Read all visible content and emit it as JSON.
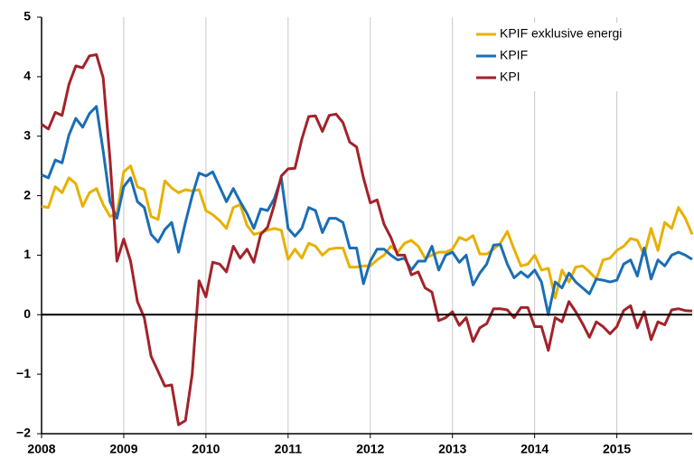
{
  "chart_data": {
    "type": "line",
    "x": [
      2008,
      2008.083,
      2008.167,
      2008.25,
      2008.333,
      2008.417,
      2008.5,
      2008.583,
      2008.667,
      2008.75,
      2008.833,
      2008.917,
      2009,
      2009.083,
      2009.167,
      2009.25,
      2009.333,
      2009.417,
      2009.5,
      2009.583,
      2009.667,
      2009.75,
      2009.833,
      2009.917,
      2010,
      2010.083,
      2010.167,
      2010.25,
      2010.333,
      2010.417,
      2010.5,
      2010.583,
      2010.667,
      2010.75,
      2010.833,
      2010.917,
      2011,
      2011.083,
      2011.167,
      2011.25,
      2011.333,
      2011.417,
      2011.5,
      2011.583,
      2011.667,
      2011.75,
      2011.833,
      2011.917,
      2012,
      2012.083,
      2012.167,
      2012.25,
      2012.333,
      2012.417,
      2012.5,
      2012.583,
      2012.667,
      2012.75,
      2012.833,
      2012.917,
      2013,
      2013.083,
      2013.167,
      2013.25,
      2013.333,
      2013.417,
      2013.5,
      2013.583,
      2013.667,
      2013.75,
      2013.833,
      2013.917,
      2014,
      2014.083,
      2014.167,
      2014.25,
      2014.333,
      2014.417,
      2014.5,
      2014.583,
      2014.667,
      2014.75,
      2014.833,
      2014.917,
      2015,
      2015.083,
      2015.167,
      2015.25,
      2015.333,
      2015.417,
      2015.5,
      2015.583,
      2015.667,
      2015.75,
      2015.833,
      2015.917
    ],
    "series": [
      {
        "name": "KPIF exklusive energi",
        "color": "#e8b000",
        "values": [
          1.82,
          1.8,
          2.15,
          2.05,
          2.3,
          2.2,
          1.82,
          2.05,
          2.12,
          1.85,
          1.65,
          1.7,
          2.4,
          2.5,
          2.15,
          2.1,
          1.65,
          1.6,
          2.25,
          2.13,
          2.05,
          2.1,
          2.08,
          2.1,
          1.75,
          1.68,
          1.58,
          1.45,
          1.8,
          1.85,
          1.5,
          1.35,
          1.38,
          1.42,
          1.45,
          1.42,
          0.93,
          1.1,
          0.95,
          1.2,
          1.15,
          1.0,
          1.1,
          1.12,
          1.12,
          0.8,
          0.8,
          0.82,
          0.82,
          0.92,
          1.0,
          1.15,
          1.05,
          1.2,
          1.25,
          1.15,
          0.95,
          1.0,
          1.05,
          1.05,
          1.1,
          1.3,
          1.25,
          1.33,
          1.02,
          1.02,
          1.1,
          1.2,
          1.4,
          1.1,
          0.82,
          0.85,
          1.0,
          0.75,
          0.78,
          0.28,
          0.75,
          0.55,
          0.8,
          0.82,
          0.72,
          0.6,
          0.92,
          0.95,
          1.08,
          1.15,
          1.28,
          1.25,
          1.0,
          1.45,
          1.08,
          1.55,
          1.45,
          1.8,
          1.62,
          1.35
        ]
      },
      {
        "name": "KPIF",
        "color": "#1a6eb5",
        "values": [
          2.35,
          2.3,
          2.6,
          2.55,
          3.02,
          3.3,
          3.15,
          3.38,
          3.5,
          2.75,
          1.9,
          1.62,
          2.15,
          2.3,
          1.9,
          1.8,
          1.35,
          1.22,
          1.43,
          1.55,
          1.05,
          1.55,
          2.0,
          2.38,
          2.33,
          2.4,
          2.15,
          1.9,
          2.12,
          1.9,
          1.7,
          1.45,
          1.78,
          1.75,
          1.95,
          2.3,
          1.45,
          1.32,
          1.45,
          1.8,
          1.75,
          1.38,
          1.62,
          1.62,
          1.55,
          1.12,
          1.12,
          0.52,
          0.9,
          1.1,
          1.1,
          1.0,
          0.92,
          0.95,
          0.75,
          0.9,
          0.9,
          1.15,
          0.75,
          1.0,
          1.05,
          0.88,
          1.0,
          0.5,
          0.7,
          0.85,
          1.17,
          1.18,
          0.85,
          0.62,
          0.72,
          0.63,
          0.75,
          0.55,
          0.0,
          0.55,
          0.45,
          0.7,
          0.55,
          0.45,
          0.35,
          0.6,
          0.58,
          0.55,
          0.58,
          0.85,
          0.92,
          0.65,
          1.12,
          0.6,
          0.92,
          0.82,
          1.0,
          1.05,
          1.0,
          0.93
        ]
      },
      {
        "name": "KPI",
        "color": "#a3222a",
        "values": [
          3.2,
          3.12,
          3.4,
          3.35,
          3.87,
          4.18,
          4.15,
          4.35,
          4.37,
          3.98,
          2.6,
          0.9,
          1.27,
          0.9,
          0.22,
          -0.05,
          -0.7,
          -0.95,
          -1.2,
          -1.18,
          -1.85,
          -1.78,
          -1.0,
          0.57,
          0.3,
          0.88,
          0.85,
          0.72,
          1.15,
          0.95,
          1.1,
          0.88,
          1.35,
          1.47,
          1.85,
          2.33,
          2.45,
          2.46,
          2.95,
          3.33,
          3.34,
          3.08,
          3.35,
          3.37,
          3.23,
          2.9,
          2.82,
          2.3,
          1.88,
          1.93,
          1.52,
          1.3,
          1.0,
          1.0,
          0.67,
          0.72,
          0.45,
          0.38,
          -0.1,
          -0.05,
          0.05,
          -0.18,
          -0.05,
          -0.45,
          -0.22,
          -0.15,
          0.1,
          0.1,
          0.08,
          -0.05,
          0.12,
          0.12,
          -0.2,
          -0.2,
          -0.6,
          -0.05,
          -0.12,
          0.22,
          0.05,
          -0.15,
          -0.38,
          -0.12,
          -0.2,
          -0.32,
          -0.2,
          0.07,
          0.15,
          -0.22,
          0.05,
          -0.42,
          -0.12,
          -0.17,
          0.08,
          0.1,
          0.07,
          0.06
        ]
      }
    ],
    "xlim": [
      2008,
      2015.917
    ],
    "xticks": [
      2008,
      2009,
      2010,
      2011,
      2012,
      2013,
      2014,
      2015
    ],
    "ylim": [
      -2,
      5
    ],
    "yticks": [
      {
        "value": -2,
        "label": "−2"
      },
      {
        "value": -1,
        "label": "−1"
      },
      0,
      1,
      2,
      3,
      4,
      5
    ],
    "legend": "top-right"
  }
}
